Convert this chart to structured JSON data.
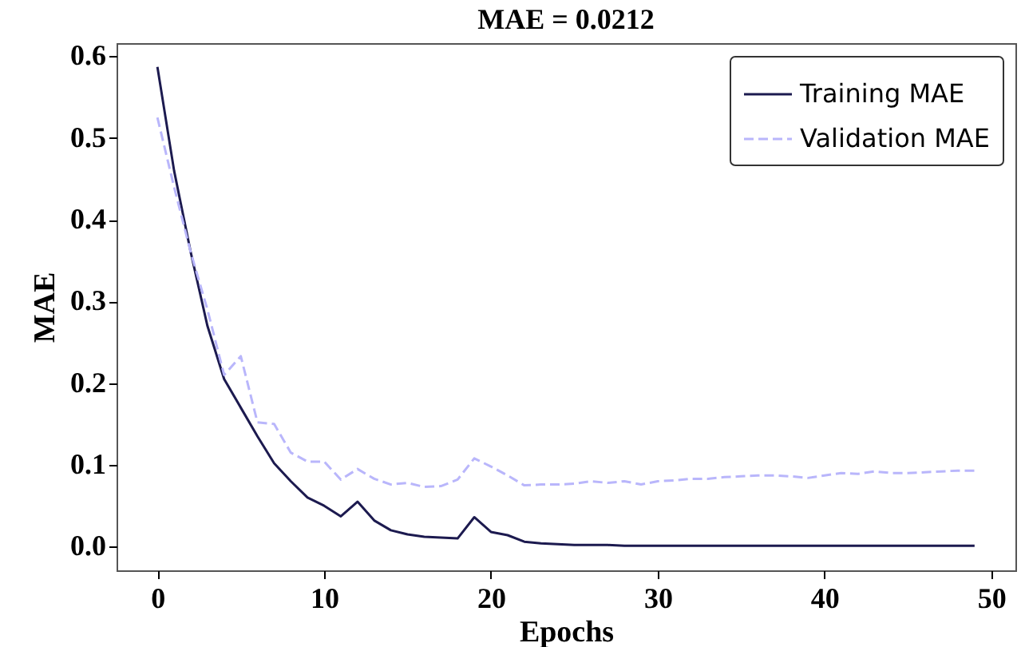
{
  "chart_data": {
    "type": "line",
    "title": "MAE = 0.0212",
    "xlabel": "Epochs",
    "ylabel": "MAE",
    "x": [
      0,
      1,
      2,
      3,
      4,
      5,
      6,
      7,
      8,
      9,
      10,
      11,
      12,
      13,
      14,
      15,
      16,
      17,
      18,
      19,
      20,
      21,
      22,
      23,
      24,
      25,
      26,
      27,
      28,
      29,
      30,
      31,
      32,
      33,
      34,
      35,
      36,
      37,
      38,
      39,
      40,
      41,
      42,
      43,
      44,
      45,
      46,
      47,
      48,
      49
    ],
    "series": [
      {
        "name": "Training MAE",
        "color": "#1c1a4f",
        "line_style": "solid",
        "values": [
          0.587,
          0.46,
          0.36,
          0.27,
          0.205,
          0.17,
          0.135,
          0.102,
          0.08,
          0.06,
          0.05,
          0.037,
          0.055,
          0.032,
          0.02,
          0.015,
          0.012,
          0.011,
          0.01,
          0.036,
          0.018,
          0.014,
          0.006,
          0.004,
          0.003,
          0.002,
          0.002,
          0.002,
          0.001,
          0.001,
          0.001,
          0.001,
          0.001,
          0.001,
          0.001,
          0.001,
          0.001,
          0.001,
          0.001,
          0.001,
          0.001,
          0.001,
          0.001,
          0.001,
          0.001,
          0.001,
          0.001,
          0.001,
          0.001,
          0.001
        ]
      },
      {
        "name": "Validation MAE",
        "color": "#b9b6fb",
        "line_style": "dashed",
        "values": [
          0.525,
          0.44,
          0.36,
          0.29,
          0.21,
          0.233,
          0.152,
          0.15,
          0.115,
          0.104,
          0.104,
          0.082,
          0.095,
          0.083,
          0.076,
          0.078,
          0.073,
          0.074,
          0.082,
          0.108,
          0.098,
          0.087,
          0.075,
          0.076,
          0.076,
          0.077,
          0.08,
          0.078,
          0.08,
          0.076,
          0.08,
          0.081,
          0.083,
          0.083,
          0.085,
          0.086,
          0.087,
          0.087,
          0.086,
          0.084,
          0.087,
          0.09,
          0.089,
          0.092,
          0.09,
          0.09,
          0.091,
          0.092,
          0.093,
          0.093
        ]
      }
    ],
    "xlim": [
      -2.45,
      51.45
    ],
    "xticks": [
      0,
      10,
      20,
      30,
      40,
      50
    ],
    "ylim": [
      -0.029,
      0.616
    ],
    "yticks": [
      {
        "value": 0,
        "label": "0.0"
      },
      {
        "value": 0.1,
        "label": "0.1"
      },
      {
        "value": 0.2,
        "label": "0.2"
      },
      {
        "value": 0.3,
        "label": "0.3"
      },
      {
        "value": 0.4,
        "label": "0.4"
      },
      {
        "value": 0.5,
        "label": "0.5"
      },
      {
        "value": 0.6,
        "label": "0.6"
      }
    ],
    "grid": false,
    "legend": "top right",
    "marker": "none"
  }
}
